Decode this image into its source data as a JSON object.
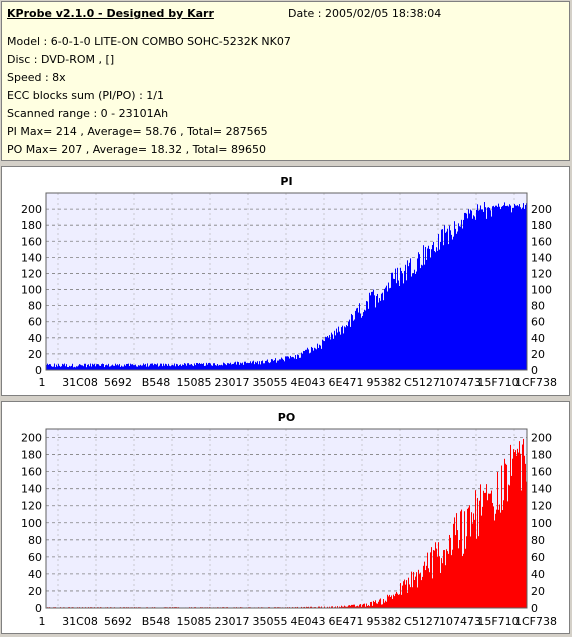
{
  "info": {
    "title": "KProbe v2.1.0 - Designed by Karr",
    "date": "Date : 2005/02/05 18:38:04",
    "model": "Model : 6-0-1-0 LITE-ON COMBO SOHC-5232K NK07",
    "disc": "Disc : DVD-ROM ,  []",
    "speed": "Speed : 8x",
    "ecc": "ECC blocks sum (PI/PO) : 1/1",
    "range": "Scanned range : 0 - 23101Ah",
    "pi_stats": "PI Max= 214 , Average= 58.76 , Total= 287565",
    "po_stats": "PO Max= 207 , Average= 18.32 , Total= 89650"
  },
  "chart_data": [
    {
      "type": "bar",
      "title": "PI",
      "color": "#0000ff",
      "ylim": [
        0,
        220
      ],
      "yticks": [
        0,
        20,
        40,
        60,
        80,
        100,
        120,
        140,
        160,
        180,
        200
      ],
      "xlabels": [
        "1",
        "31C08",
        "5692",
        "B548",
        "15085",
        "23017",
        "35055",
        "4E043",
        "6E471",
        "95382",
        "C5127",
        "107473",
        "15F710",
        "1CF738"
      ],
      "grid": true,
      "envelope": [
        [
          0,
          8
        ],
        [
          20,
          8
        ],
        [
          35,
          9
        ],
        [
          45,
          12
        ],
        [
          52,
          20
        ],
        [
          57,
          35
        ],
        [
          62,
          60
        ],
        [
          67,
          95
        ],
        [
          72,
          125
        ],
        [
          77,
          150
        ],
        [
          82,
          175
        ],
        [
          86,
          195
        ],
        [
          90,
          205
        ],
        [
          95,
          208
        ],
        [
          100,
          208
        ]
      ],
      "floor": [
        [
          0,
          3
        ],
        [
          20,
          4
        ],
        [
          35,
          5
        ],
        [
          45,
          7
        ],
        [
          52,
          12
        ],
        [
          57,
          25
        ],
        [
          62,
          45
        ],
        [
          67,
          70
        ],
        [
          72,
          95
        ],
        [
          77,
          120
        ],
        [
          82,
          145
        ],
        [
          86,
          170
        ],
        [
          90,
          195
        ],
        [
          95,
          200
        ],
        [
          100,
          200
        ]
      ]
    },
    {
      "type": "bar",
      "title": "PO",
      "color": "#ff0000",
      "ylim": [
        0,
        210
      ],
      "yticks": [
        0,
        20,
        40,
        60,
        80,
        100,
        120,
        140,
        160,
        180,
        200
      ],
      "xlabels": [
        "1",
        "31C08",
        "5692",
        "B548",
        "15085",
        "23017",
        "35055",
        "4E043",
        "6E471",
        "95382",
        "C5127",
        "107473",
        "15F710",
        "1CF738"
      ],
      "grid": true,
      "envelope": [
        [
          0,
          1
        ],
        [
          50,
          1
        ],
        [
          60,
          2
        ],
        [
          66,
          5
        ],
        [
          70,
          12
        ],
        [
          74,
          30
        ],
        [
          78,
          55
        ],
        [
          82,
          85
        ],
        [
          86,
          115
        ],
        [
          90,
          145
        ],
        [
          94,
          175
        ],
        [
          97,
          195
        ],
        [
          100,
          200
        ]
      ],
      "floor": [
        [
          0,
          0
        ],
        [
          50,
          0
        ],
        [
          60,
          0
        ],
        [
          66,
          1
        ],
        [
          70,
          4
        ],
        [
          74,
          12
        ],
        [
          78,
          25
        ],
        [
          82,
          40
        ],
        [
          86,
          55
        ],
        [
          90,
          75
        ],
        [
          94,
          100
        ],
        [
          97,
          120
        ],
        [
          100,
          130
        ]
      ]
    }
  ]
}
